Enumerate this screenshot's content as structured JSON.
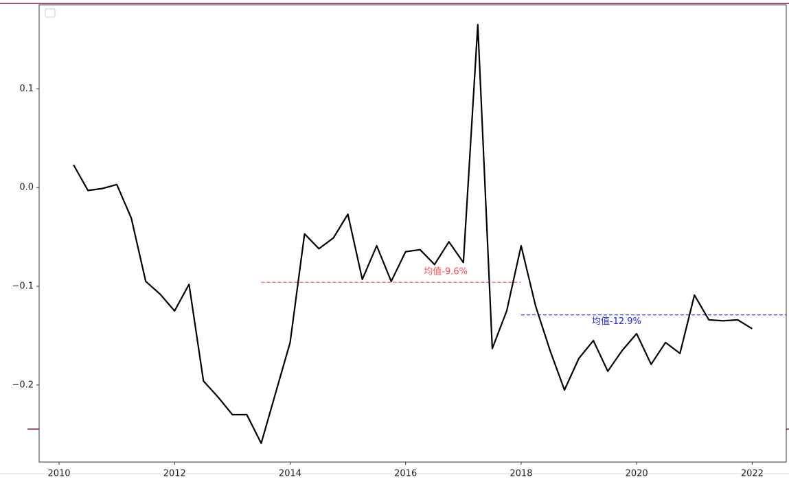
{
  "chart_data": {
    "type": "line",
    "x": [
      2010.25,
      2010.5,
      2010.75,
      2011.0,
      2011.25,
      2011.5,
      2011.75,
      2012.0,
      2012.25,
      2012.5,
      2012.75,
      2013.0,
      2013.25,
      2013.5,
      2013.75,
      2014.0,
      2014.25,
      2014.5,
      2014.75,
      2015.0,
      2015.25,
      2015.5,
      2015.75,
      2016.0,
      2016.25,
      2016.5,
      2016.75,
      2017.0,
      2017.25,
      2017.5,
      2017.75,
      2018.0,
      2018.25,
      2018.5,
      2018.75,
      2019.0,
      2019.25,
      2019.5,
      2019.75,
      2020.0,
      2020.25,
      2020.5,
      2020.75,
      2021.0,
      2021.25,
      2021.5,
      2021.75,
      2022.0
    ],
    "series": [
      {
        "color": "#000000",
        "values": [
          0.023,
          -0.003,
          -0.001,
          0.003,
          -0.031,
          -0.095,
          -0.108,
          -0.125,
          -0.098,
          -0.196,
          -0.212,
          -0.23,
          -0.23,
          -0.259,
          -0.208,
          -0.157,
          -0.047,
          -0.062,
          -0.051,
          -0.027,
          -0.093,
          -0.059,
          -0.095,
          -0.065,
          -0.063,
          -0.078,
          -0.055,
          -0.076,
          0.165,
          -0.163,
          -0.125,
          -0.059,
          -0.12,
          -0.165,
          -0.205,
          -0.173,
          -0.155,
          -0.186,
          -0.165,
          -0.148,
          -0.179,
          -0.157,
          -0.168,
          -0.109,
          -0.134,
          -0.135,
          -0.134,
          -0.143
        ]
      }
    ],
    "xlim": [
      2009.655,
      2022.59
    ],
    "xticks": [
      2010,
      2012,
      2014,
      2016,
      2018,
      2020,
      2022
    ],
    "ylim": [
      -0.278,
      0.185
    ],
    "yticks": [
      {
        "value": -0.2,
        "label": "−0.2"
      },
      {
        "value": -0.1,
        "label": "−0.1"
      },
      {
        "value": 0,
        "label": "0.0"
      },
      0.1
    ],
    "annotations": [
      {
        "text": "均值-9.6%",
        "color": "#ff4d4d",
        "y": -0.096,
        "x": [
          2013.5,
          2018.0
        ]
      },
      {
        "text": "均值-12.9%",
        "color": "#2020ff",
        "y": -0.129,
        "x": [
          2018.0,
          2022.59
        ]
      }
    ]
  }
}
